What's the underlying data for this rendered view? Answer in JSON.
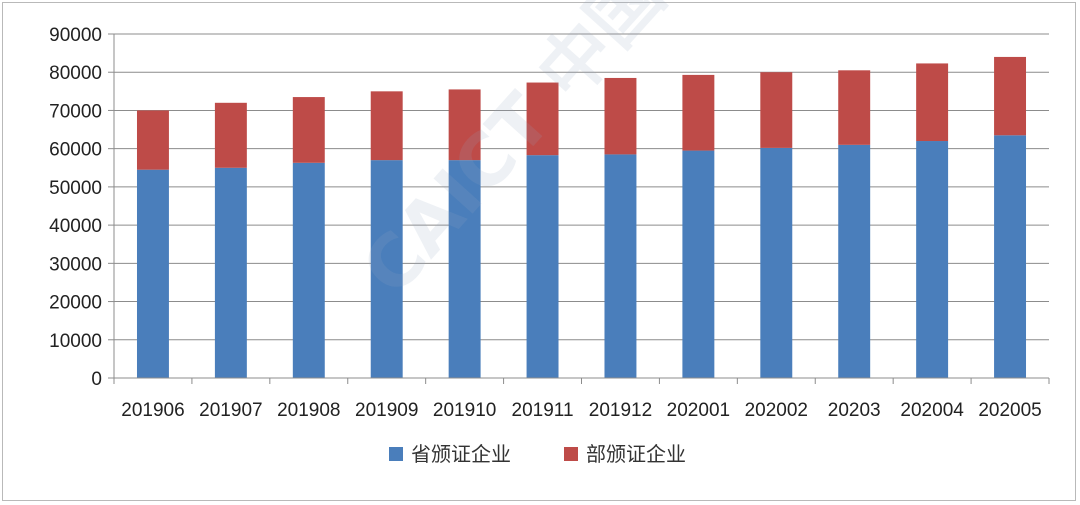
{
  "chart_data": {
    "type": "bar",
    "stacked": true,
    "categories": [
      "201906",
      "201907",
      "201908",
      "201909",
      "201910",
      "201911",
      "201912",
      "202001",
      "202002",
      "20203",
      "202004",
      "202005"
    ],
    "series": [
      {
        "name": "省颁证企业",
        "color": "#4a7ebb",
        "values": [
          54500,
          55000,
          56300,
          57000,
          57000,
          58300,
          58500,
          59500,
          60200,
          61000,
          62000,
          63500
        ]
      },
      {
        "name": "部颁证企业",
        "color": "#be4b48",
        "values": [
          15500,
          17000,
          17200,
          18000,
          18500,
          19000,
          20000,
          19800,
          19800,
          19500,
          20300,
          20500
        ]
      }
    ],
    "ylim": [
      0,
      90000
    ],
    "yticks": [
      "0",
      "10000",
      "20000",
      "30000",
      "40000",
      "50000",
      "60000",
      "70000",
      "80000",
      "90000"
    ],
    "grid": true,
    "legend": "bottom",
    "title": "",
    "xlabel": "",
    "ylabel": ""
  },
  "watermark": "CAICT 中国信通院"
}
